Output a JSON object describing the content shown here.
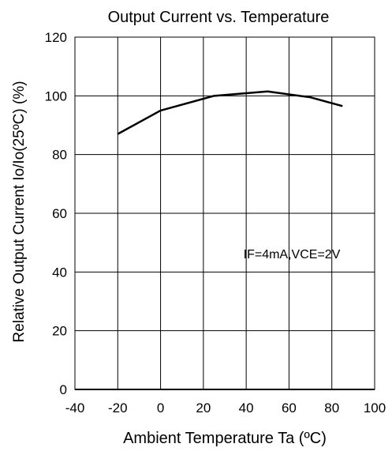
{
  "chart_data": {
    "type": "line",
    "title": "Output Current vs. Temperature",
    "xlabel": "Ambient Temperature  Ta (ºC)",
    "ylabel": "Relative Output Current  Io/Io(25ºC) (%)",
    "xlim": [
      -40,
      100
    ],
    "ylim": [
      0,
      120
    ],
    "xticks": [
      -40,
      -20,
      0,
      20,
      40,
      60,
      80,
      100
    ],
    "yticks": [
      0,
      20,
      40,
      60,
      80,
      100,
      120
    ],
    "grid": true,
    "annotation": "IF=4mA,VCE=2V",
    "series": [
      {
        "x": [
          -20,
          0,
          25,
          50,
          70,
          85
        ],
        "y": [
          87,
          95,
          100,
          101.5,
          99.5,
          96.5
        ]
      }
    ]
  }
}
